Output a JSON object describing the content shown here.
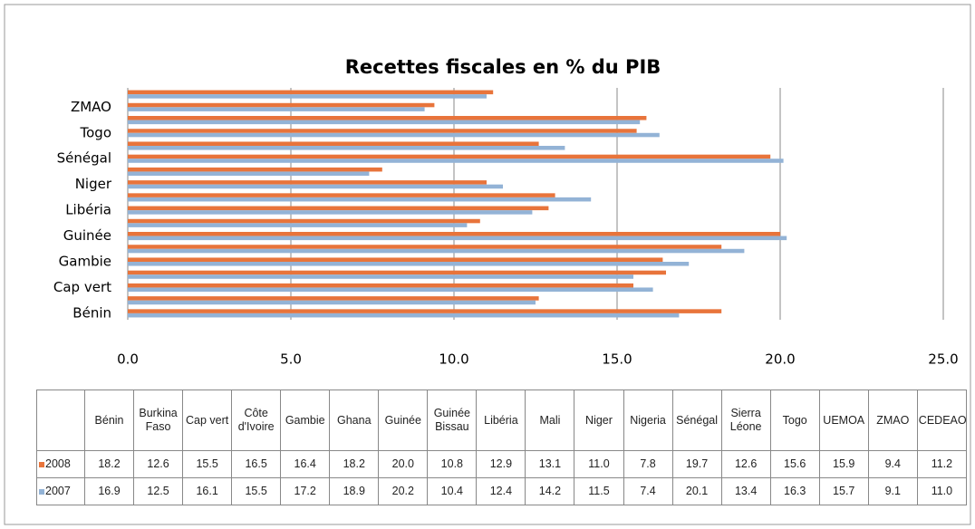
{
  "chart_data": {
    "type": "barh",
    "title": "Recettes fiscales en % du PIB",
    "categories": [
      "Bénin",
      "Burkina Faso",
      "Cap vert",
      "Côte d'Ivoire",
      "Gambie",
      "Ghana",
      "Guinée",
      "Guinée Bissau",
      "Libéria",
      "Mali",
      "Niger",
      "Nigeria",
      "Sénégal",
      "Sierra Léone",
      "Togo",
      "UEMOA",
      "ZMAO",
      "CEDEAO"
    ],
    "series": [
      {
        "name": "2008",
        "color": "#e8743b",
        "values": [
          18.2,
          12.6,
          15.5,
          16.5,
          16.4,
          18.2,
          20.0,
          10.8,
          12.9,
          13.1,
          11.0,
          7.8,
          19.7,
          12.6,
          15.6,
          15.9,
          9.4,
          11.2
        ],
        "value_labels": [
          "18.2",
          "12.6",
          "15.5",
          "16.5",
          "16.4",
          "18.2",
          "20.0",
          "10.8",
          "12.9",
          "13.1",
          "11.0",
          "7.8",
          "19.7",
          "12.6",
          "15.6",
          "15.9",
          "9.4",
          "11.2"
        ]
      },
      {
        "name": "2007",
        "color": "#93b3d6",
        "values": [
          16.9,
          12.5,
          16.1,
          15.5,
          17.2,
          18.9,
          20.2,
          10.4,
          12.4,
          14.2,
          11.5,
          7.4,
          20.1,
          13.4,
          16.3,
          15.7,
          9.1,
          11.0
        ],
        "value_labels": [
          "16.9",
          "12.5",
          "16.1",
          "15.5",
          "17.2",
          "18.9",
          "20.2",
          "10.4",
          "12.4",
          "14.2",
          "11.5",
          "7.4",
          "20.1",
          "13.4",
          "16.3",
          "15.7",
          "9.1",
          "11.0"
        ]
      }
    ],
    "xlim": [
      0,
      25
    ],
    "xticks": [
      {
        "value": 0,
        "label": "0.0"
      },
      {
        "value": 5,
        "label": "5.0"
      },
      {
        "value": 10,
        "label": "10.0"
      },
      {
        "value": 15,
        "label": "15.0"
      },
      {
        "value": 20,
        "label": "20.0"
      },
      {
        "value": 25,
        "label": "25.0"
      }
    ],
    "grid": true
  }
}
